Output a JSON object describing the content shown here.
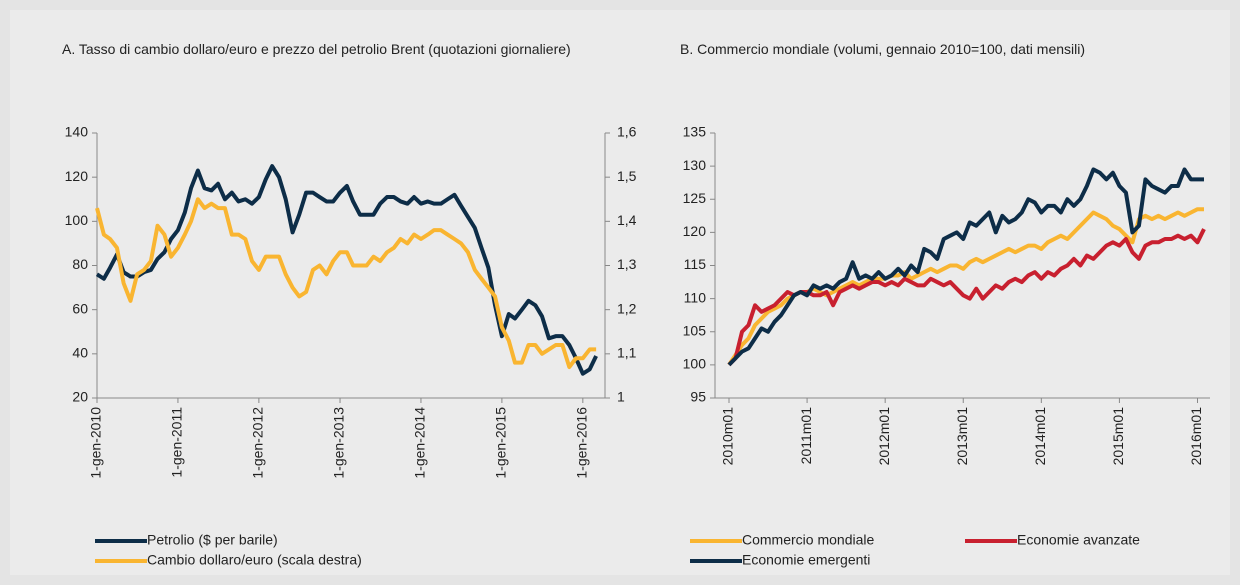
{
  "chart_data": [
    {
      "type": "line",
      "title": "A.  Tasso di cambio dollaro/euro e prezzo del petrolio Brent (quotazioni giornaliere)",
      "x": [
        "2010-01-01",
        "2010-02-01",
        "2010-03-01",
        "2010-04-01",
        "2010-05-01",
        "2010-06-01",
        "2010-07-01",
        "2010-08-01",
        "2010-09-01",
        "2010-10-01",
        "2010-11-01",
        "2010-12-01",
        "2011-01-01",
        "2011-02-01",
        "2011-03-01",
        "2011-04-01",
        "2011-05-01",
        "2011-06-01",
        "2011-07-01",
        "2011-08-01",
        "2011-09-01",
        "2011-10-01",
        "2011-11-01",
        "2011-12-01",
        "2012-01-01",
        "2012-02-01",
        "2012-03-01",
        "2012-04-01",
        "2012-05-01",
        "2012-06-01",
        "2012-07-01",
        "2012-08-01",
        "2012-09-01",
        "2012-10-01",
        "2012-11-01",
        "2012-12-01",
        "2013-01-01",
        "2013-02-01",
        "2013-03-01",
        "2013-04-01",
        "2013-05-01",
        "2013-06-01",
        "2013-07-01",
        "2013-08-01",
        "2013-09-01",
        "2013-10-01",
        "2013-11-01",
        "2013-12-01",
        "2014-01-01",
        "2014-02-01",
        "2014-03-01",
        "2014-04-01",
        "2014-05-01",
        "2014-06-01",
        "2014-07-01",
        "2014-08-01",
        "2014-09-01",
        "2014-10-01",
        "2014-11-01",
        "2014-12-01",
        "2015-01-01",
        "2015-02-01",
        "2015-03-01",
        "2015-04-01",
        "2015-05-01",
        "2015-06-01",
        "2015-07-01",
        "2015-08-01",
        "2015-09-01",
        "2015-10-01",
        "2015-11-01",
        "2015-12-01",
        "2016-01-01",
        "2016-02-01",
        "2016-03-01"
      ],
      "xlim": [
        "2010-01-01",
        "2016-04-10"
      ],
      "xticks": [
        {
          "value": "2010-01-01",
          "label": "1-gen-2010"
        },
        {
          "value": "2011-01-01",
          "label": "1-gen-2011"
        },
        {
          "value": "2012-01-01",
          "label": "1-gen-2012"
        },
        {
          "value": "2013-01-01",
          "label": "1-gen-2013"
        },
        {
          "value": "2014-01-01",
          "label": "1-gen-2014"
        },
        {
          "value": "2015-01-01",
          "label": "1-gen-2015"
        },
        {
          "value": "2016-01-01",
          "label": "1-gen-2016"
        }
      ],
      "ylim": [
        20,
        140
      ],
      "yticks": [
        20,
        40,
        60,
        80,
        100,
        120,
        140
      ],
      "y2lim": [
        1,
        1.6
      ],
      "y2ticks": [
        1,
        {
          "value": 1.1,
          "label": "1,1"
        },
        {
          "value": 1.2,
          "label": "1,2"
        },
        {
          "value": 1.3,
          "label": "1,3"
        },
        {
          "value": 1.4,
          "label": "1,4"
        },
        {
          "value": 1.5,
          "label": "1,5"
        },
        {
          "value": 1.6,
          "label": "1,6"
        }
      ],
      "series": [
        {
          "name": "Petrolio ($ per barile)",
          "color": "#0d2d48",
          "values": [
            76,
            74,
            79,
            85,
            77,
            75,
            75,
            77,
            78,
            83,
            86,
            92,
            96,
            104,
            115,
            123,
            115,
            114,
            117,
            110,
            113,
            109,
            110,
            108,
            111,
            119,
            125,
            120,
            110,
            95,
            103,
            113,
            113,
            111,
            109,
            109,
            113,
            116,
            109,
            103,
            103,
            103,
            108,
            111,
            111,
            109,
            108,
            111,
            108,
            109,
            108,
            108,
            110,
            112,
            107,
            102,
            97,
            88,
            79,
            62,
            48,
            58,
            56,
            60,
            64,
            62,
            57,
            47,
            48,
            48,
            44,
            38,
            31,
            33,
            39
          ]
        },
        {
          "name": "Cambio dollaro/euro (scala destra)",
          "color": "#f9b531",
          "axis": "y2",
          "values": [
            1.43,
            1.37,
            1.36,
            1.34,
            1.26,
            1.22,
            1.28,
            1.29,
            1.31,
            1.39,
            1.37,
            1.32,
            1.34,
            1.37,
            1.4,
            1.45,
            1.43,
            1.44,
            1.43,
            1.43,
            1.37,
            1.37,
            1.36,
            1.31,
            1.29,
            1.32,
            1.32,
            1.32,
            1.28,
            1.25,
            1.23,
            1.24,
            1.29,
            1.3,
            1.28,
            1.31,
            1.33,
            1.33,
            1.3,
            1.3,
            1.3,
            1.32,
            1.31,
            1.33,
            1.34,
            1.36,
            1.35,
            1.37,
            1.36,
            1.37,
            1.38,
            1.38,
            1.37,
            1.36,
            1.35,
            1.33,
            1.29,
            1.27,
            1.25,
            1.23,
            1.16,
            1.13,
            1.08,
            1.08,
            1.12,
            1.12,
            1.1,
            1.11,
            1.12,
            1.12,
            1.07,
            1.09,
            1.09,
            1.11,
            1.11
          ]
        }
      ]
    },
    {
      "type": "line",
      "title": "B.  Commercio mondiale (volumi, gennaio 2010=100, dati mensili)",
      "categories": [
        "2010m01",
        null,
        null,
        null,
        null,
        null,
        null,
        null,
        null,
        null,
        null,
        null,
        "2011m01",
        null,
        null,
        null,
        null,
        null,
        null,
        null,
        null,
        null,
        null,
        null,
        "2012m01",
        null,
        null,
        null,
        null,
        null,
        null,
        null,
        null,
        null,
        null,
        null,
        "2013m01",
        null,
        null,
        null,
        null,
        null,
        null,
        null,
        null,
        null,
        null,
        null,
        "2014m01",
        null,
        null,
        null,
        null,
        null,
        null,
        null,
        null,
        null,
        null,
        null,
        "2015m01",
        null,
        null,
        null,
        null,
        null,
        null,
        null,
        null,
        null,
        null,
        null,
        "2016m01",
        null
      ],
      "ylim": [
        95,
        135
      ],
      "yticks": [
        95,
        100,
        105,
        110,
        115,
        120,
        125,
        130,
        135
      ],
      "series": [
        {
          "name": "Commercio mondiale",
          "color": "#f9b531",
          "values": [
            100,
            101.5,
            103,
            104,
            106,
            107,
            108,
            108.5,
            109,
            110,
            110.5,
            111,
            111,
            111.5,
            111,
            110.5,
            111,
            111.5,
            112,
            112.5,
            112,
            112.5,
            113,
            113,
            113,
            113.5,
            113.5,
            114,
            113,
            113.5,
            114,
            114.5,
            114,
            114.5,
            115,
            115,
            114.5,
            115.5,
            116,
            115.5,
            116,
            116.5,
            117,
            117.5,
            117,
            117.5,
            118,
            118,
            117.5,
            118.5,
            119,
            119.5,
            119,
            120,
            121,
            122,
            123,
            122.5,
            122,
            121,
            120.5,
            119.5,
            118.5,
            122,
            122.5,
            122,
            122.5,
            122,
            122.5,
            123,
            122.5,
            123,
            123.5,
            123.5
          ]
        },
        {
          "name": "Economie avanzate",
          "color": "#c8202f",
          "values": [
            100,
            101,
            105,
            106,
            109,
            108,
            108.5,
            109,
            110,
            111,
            110.5,
            111,
            111,
            110.5,
            110.5,
            111,
            109,
            111,
            111.5,
            112,
            111.5,
            112,
            112.5,
            112.5,
            112,
            112.5,
            112,
            113,
            112.5,
            112,
            112,
            113,
            112.5,
            112,
            112.5,
            111.5,
            110.5,
            110,
            111.5,
            110,
            111,
            112,
            111.5,
            112.5,
            113,
            112.5,
            113.5,
            114,
            113,
            114,
            113.5,
            114.5,
            115,
            116,
            115,
            116.5,
            116,
            117,
            118,
            118.5,
            118,
            119,
            117,
            116,
            118,
            118.5,
            118.5,
            119,
            119,
            119.5,
            119,
            119.5,
            118.5,
            120.5
          ]
        },
        {
          "name": "Economie emergenti",
          "color": "#0d2d48",
          "values": [
            100,
            101,
            102,
            102.5,
            104,
            105.5,
            105,
            106.5,
            107.5,
            109,
            110.5,
            111,
            110.5,
            112,
            111.5,
            112,
            111.5,
            112.5,
            113,
            115.5,
            113,
            113.5,
            113,
            114,
            113,
            113.5,
            114.5,
            113.5,
            115,
            114,
            117.5,
            117,
            116,
            119,
            119.5,
            120,
            119,
            121.5,
            121,
            122,
            123,
            120,
            122.5,
            121.5,
            122,
            123,
            125,
            124.5,
            123,
            124,
            124,
            123,
            125,
            124,
            125,
            127,
            129.5,
            129,
            128,
            129,
            127,
            126,
            120,
            121,
            128,
            127,
            126.5,
            126,
            127,
            127,
            129.5,
            128,
            128,
            128
          ]
        }
      ]
    }
  ]
}
